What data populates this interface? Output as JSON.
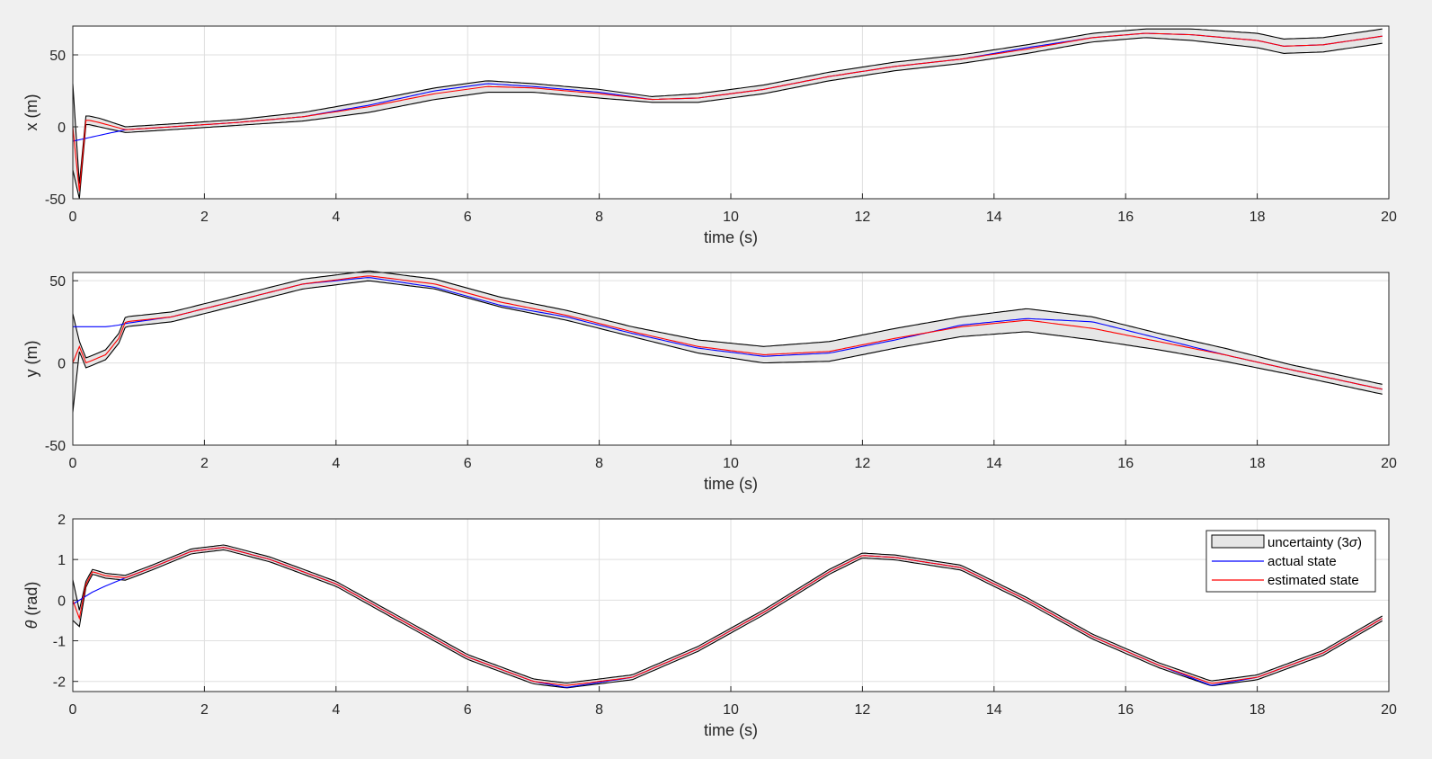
{
  "colors": {
    "background": "#f0f0f0",
    "axes": "#ffffff",
    "grid": "#dfdfdf",
    "actual": "#0000ff",
    "estimated": "#ff0000",
    "band_fill": "#e6e6e6",
    "band_edge": "#000000"
  },
  "legend": {
    "uncertainty": "uncertainty (3",
    "sigma": "σ",
    "close": ")",
    "actual": "actual state",
    "estimated": "estimated state",
    "placement": "top-right (bottom plot)"
  },
  "chart_data": [
    {
      "type": "line",
      "xlabel": "time (s)",
      "ylabel": "x (m)",
      "xlim": [
        0,
        20
      ],
      "ylim": [
        -50,
        70
      ],
      "xticks": [
        "0",
        "2",
        "4",
        "6",
        "8",
        "10",
        "12",
        "14",
        "16",
        "18",
        "20"
      ],
      "yticks": [
        "-50",
        "0",
        "50"
      ],
      "ytick_values": [
        -50,
        0,
        50
      ],
      "grid": true,
      "t": [
        0,
        0.1,
        0.2,
        0.4,
        0.8,
        1.5,
        2.5,
        3.5,
        4.5,
        5.5,
        6.3,
        7,
        8,
        8.8,
        9.5,
        10.5,
        11.5,
        12.5,
        13.5,
        14.5,
        15.5,
        16.3,
        17,
        18,
        18.4,
        19,
        19.9
      ],
      "actual": [
        -10,
        -9,
        -8,
        -6,
        -2,
        0,
        3,
        7,
        15,
        25,
        30,
        28,
        24,
        19,
        20,
        26,
        35,
        42,
        47,
        55,
        62,
        65,
        64,
        60,
        56,
        57,
        63
      ],
      "estimated": [
        0,
        -45,
        5,
        3,
        -2,
        0,
        3,
        7,
        14,
        23,
        28,
        27,
        23,
        19,
        20,
        26,
        35,
        42,
        47,
        54,
        62,
        65,
        64,
        60,
        56,
        57,
        63
      ],
      "sigma3": [
        30,
        5,
        3,
        3,
        2,
        2,
        2,
        3,
        4,
        4,
        4,
        3,
        3,
        2,
        3,
        3,
        3,
        3,
        3,
        3,
        3,
        3,
        4,
        5,
        5,
        5,
        5
      ],
      "series_names": [
        "uncertainty (3σ)",
        "actual state",
        "estimated state"
      ]
    },
    {
      "type": "line",
      "xlabel": "time (s)",
      "ylabel": "y (m)",
      "xlim": [
        0,
        20
      ],
      "ylim": [
        -50,
        55
      ],
      "xticks": [
        "0",
        "2",
        "4",
        "6",
        "8",
        "10",
        "12",
        "14",
        "16",
        "18",
        "20"
      ],
      "yticks": [
        "-50",
        "0",
        "50"
      ],
      "ytick_values": [
        -50,
        0,
        50
      ],
      "grid": true,
      "t": [
        0,
        0.1,
        0.2,
        0.5,
        0.7,
        0.8,
        1.5,
        2.5,
        3.5,
        4.5,
        5.5,
        6.5,
        7.5,
        8.5,
        9.5,
        10.5,
        11.5,
        12.5,
        13.5,
        14.5,
        15.5,
        16.5,
        17.5,
        18.5,
        19.9
      ],
      "actual": [
        22,
        22,
        22,
        22,
        23,
        24,
        28,
        38,
        48,
        52,
        46,
        35,
        28,
        18,
        9,
        4,
        6,
        14,
        23,
        27,
        25,
        15,
        5,
        -4,
        -16
      ],
      "estimated": [
        0,
        10,
        0,
        5,
        15,
        25,
        28,
        38,
        48,
        53,
        48,
        37,
        29,
        19,
        10,
        5,
        7,
        15,
        22,
        26,
        21,
        13,
        5,
        -4,
        -16
      ],
      "sigma3": [
        30,
        3,
        3,
        3,
        3,
        3,
        3,
        3,
        3,
        3,
        3,
        3,
        3,
        3,
        4,
        5,
        6,
        6,
        6,
        7,
        7,
        5,
        4,
        3,
        3
      ],
      "series_names": [
        "uncertainty (3σ)",
        "actual state",
        "estimated state"
      ]
    },
    {
      "type": "line",
      "xlabel": "time (s)",
      "ylabel": "θ (rad)",
      "xlim": [
        0,
        20
      ],
      "ylim": [
        -2.25,
        2
      ],
      "xticks": [
        "0",
        "2",
        "4",
        "6",
        "8",
        "10",
        "12",
        "14",
        "16",
        "18",
        "20"
      ],
      "yticks": [
        "-2",
        "-1",
        "0",
        "1",
        "2"
      ],
      "ytick_values": [
        -2,
        -1,
        0,
        1,
        2
      ],
      "grid": true,
      "t": [
        0,
        0.1,
        0.2,
        0.3,
        0.5,
        0.8,
        1.2,
        1.8,
        2.3,
        3,
        4,
        5,
        6,
        7,
        7.5,
        8.5,
        9.5,
        10.5,
        11.5,
        12,
        12.5,
        13.5,
        14.5,
        15.5,
        16.5,
        17.3,
        18,
        19,
        19.9
      ],
      "actual": [
        -0.1,
        0.0,
        0.1,
        0.2,
        0.35,
        0.55,
        0.8,
        1.2,
        1.3,
        1.0,
        0.4,
        -0.5,
        -1.4,
        -2.0,
        -2.15,
        -1.9,
        -1.2,
        -0.3,
        0.7,
        1.1,
        1.05,
        0.8,
        0.0,
        -0.9,
        -1.6,
        -2.1,
        -1.9,
        -1.3,
        -0.45
      ],
      "estimated": [
        0.0,
        -0.45,
        0.4,
        0.7,
        0.6,
        0.55,
        0.8,
        1.2,
        1.3,
        1.0,
        0.4,
        -0.5,
        -1.4,
        -2.0,
        -2.1,
        -1.9,
        -1.2,
        -0.3,
        0.7,
        1.1,
        1.05,
        0.8,
        0.0,
        -0.9,
        -1.6,
        -2.05,
        -1.9,
        -1.3,
        -0.45
      ],
      "sigma3": [
        0.5,
        0.2,
        0.07,
        0.06,
        0.06,
        0.06,
        0.06,
        0.06,
        0.06,
        0.06,
        0.06,
        0.06,
        0.06,
        0.06,
        0.06,
        0.06,
        0.06,
        0.06,
        0.06,
        0.06,
        0.06,
        0.06,
        0.06,
        0.06,
        0.06,
        0.06,
        0.06,
        0.06,
        0.06
      ],
      "series_names": [
        "uncertainty (3σ)",
        "actual state",
        "estimated state"
      ]
    }
  ]
}
